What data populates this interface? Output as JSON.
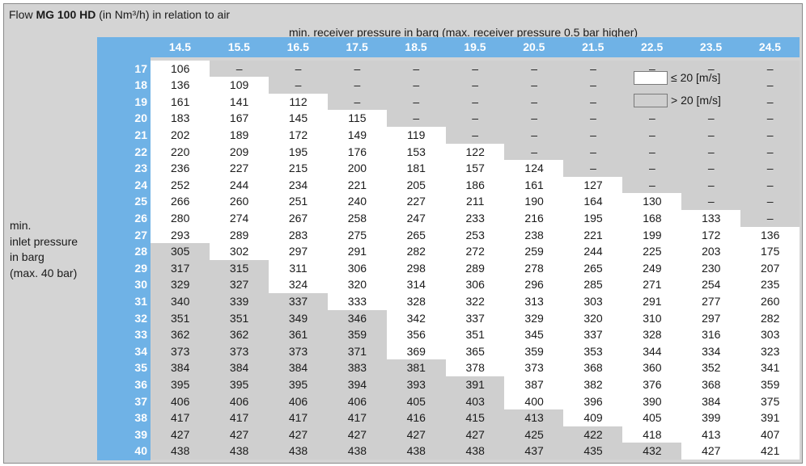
{
  "title_prefix": "Flow ",
  "title_bold": "MG 100 HD",
  "title_suffix": " (in Nm³/h) in relation to air",
  "col_header": "min. receiver pressure in barg (max. receiver pressure 0.5 bar higher)",
  "row_header_lines": [
    "min.",
    "inlet pressure",
    "in barg",
    "(max. 40 bar)"
  ],
  "legend": [
    {
      "label": "≤ 20 [m/s]",
      "color": "#ffffff"
    },
    {
      "label": "> 20 [m/s]",
      "color": "#cfcfcf"
    }
  ],
  "colors": {
    "header_blue": "#6fb2e6",
    "grey": "#cfcfcf",
    "white": "#ffffff"
  },
  "columns": [
    "14.5",
    "15.5",
    "16.5",
    "17.5",
    "18.5",
    "19.5",
    "20.5",
    "21.5",
    "22.5",
    "23.5",
    "24.5"
  ],
  "rows": [
    {
      "p": "17",
      "v": [
        "106",
        "–",
        "–",
        "–",
        "–",
        "–",
        "–",
        "–",
        "–",
        "–",
        "–"
      ],
      "w": 1
    },
    {
      "p": "18",
      "v": [
        "136",
        "109",
        "–",
        "–",
        "–",
        "–",
        "–",
        "–",
        "",
        "",
        "–"
      ],
      "w": 2
    },
    {
      "p": "19",
      "v": [
        "161",
        "141",
        "112",
        "–",
        "–",
        "–",
        "–",
        "–",
        "",
        "",
        "–"
      ],
      "w": 3
    },
    {
      "p": "20",
      "v": [
        "183",
        "167",
        "145",
        "115",
        "–",
        "–",
        "–",
        "–",
        "–",
        "–",
        "–"
      ],
      "w": 4
    },
    {
      "p": "21",
      "v": [
        "202",
        "189",
        "172",
        "149",
        "119",
        "–",
        "–",
        "–",
        "–",
        "–",
        "–"
      ],
      "w": 5
    },
    {
      "p": "22",
      "v": [
        "220",
        "209",
        "195",
        "176",
        "153",
        "122",
        "–",
        "–",
        "–",
        "–",
        "–"
      ],
      "w": 6
    },
    {
      "p": "23",
      "v": [
        "236",
        "227",
        "215",
        "200",
        "181",
        "157",
        "124",
        "–",
        "–",
        "–",
        "–"
      ],
      "w": 7
    },
    {
      "p": "24",
      "v": [
        "252",
        "244",
        "234",
        "221",
        "205",
        "186",
        "161",
        "127",
        "–",
        "–",
        "–"
      ],
      "w": 8
    },
    {
      "p": "25",
      "v": [
        "266",
        "260",
        "251",
        "240",
        "227",
        "211",
        "190",
        "164",
        "130",
        "–",
        "–"
      ],
      "w": 9
    },
    {
      "p": "26",
      "v": [
        "280",
        "274",
        "267",
        "258",
        "247",
        "233",
        "216",
        "195",
        "168",
        "133",
        "–"
      ],
      "w": 10
    },
    {
      "p": "27",
      "v": [
        "293",
        "289",
        "283",
        "275",
        "265",
        "253",
        "238",
        "221",
        "199",
        "172",
        "136"
      ],
      "w": 11
    },
    {
      "p": "28",
      "v": [
        "305",
        "302",
        "297",
        "291",
        "282",
        "272",
        "259",
        "244",
        "225",
        "203",
        "175"
      ],
      "g": 1
    },
    {
      "p": "29",
      "v": [
        "317",
        "315",
        "311",
        "306",
        "298",
        "289",
        "278",
        "265",
        "249",
        "230",
        "207"
      ],
      "g": 2
    },
    {
      "p": "30",
      "v": [
        "329",
        "327",
        "324",
        "320",
        "314",
        "306",
        "296",
        "285",
        "271",
        "254",
        "235"
      ],
      "g": 2
    },
    {
      "p": "31",
      "v": [
        "340",
        "339",
        "337",
        "333",
        "328",
        "322",
        "313",
        "303",
        "291",
        "277",
        "260"
      ],
      "g": 3
    },
    {
      "p": "32",
      "v": [
        "351",
        "351",
        "349",
        "346",
        "342",
        "337",
        "329",
        "320",
        "310",
        "297",
        "282"
      ],
      "g": 4
    },
    {
      "p": "33",
      "v": [
        "362",
        "362",
        "361",
        "359",
        "356",
        "351",
        "345",
        "337",
        "328",
        "316",
        "303"
      ],
      "g": 4
    },
    {
      "p": "34",
      "v": [
        "373",
        "373",
        "373",
        "371",
        "369",
        "365",
        "359",
        "353",
        "344",
        "334",
        "323"
      ],
      "g": 4
    },
    {
      "p": "35",
      "v": [
        "384",
        "384",
        "384",
        "383",
        "381",
        "378",
        "373",
        "368",
        "360",
        "352",
        "341"
      ],
      "g": 5
    },
    {
      "p": "36",
      "v": [
        "395",
        "395",
        "395",
        "394",
        "393",
        "391",
        "387",
        "382",
        "376",
        "368",
        "359"
      ],
      "g": 6
    },
    {
      "p": "37",
      "v": [
        "406",
        "406",
        "406",
        "406",
        "405",
        "403",
        "400",
        "396",
        "390",
        "384",
        "375"
      ],
      "g": 6
    },
    {
      "p": "38",
      "v": [
        "417",
        "417",
        "417",
        "417",
        "416",
        "415",
        "413",
        "409",
        "405",
        "399",
        "391"
      ],
      "g": 7
    },
    {
      "p": "39",
      "v": [
        "427",
        "427",
        "427",
        "427",
        "427",
        "427",
        "425",
        "422",
        "418",
        "413",
        "407"
      ],
      "g": 8
    },
    {
      "p": "40",
      "v": [
        "438",
        "438",
        "438",
        "438",
        "438",
        "438",
        "437",
        "435",
        "432",
        "427",
        "421"
      ],
      "g": 9
    }
  ]
}
